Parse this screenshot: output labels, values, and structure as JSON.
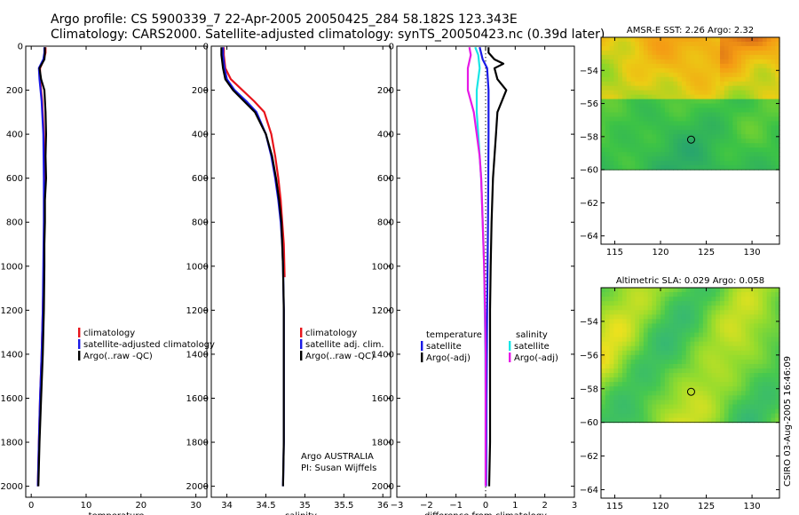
{
  "page": {
    "title_line1": "Argo profile: CS 5900339_7 22-Apr-2005 20050425_284 58.182S 123.343E",
    "title_line2": "Climatology: CARS2000. Satellite-adjusted climatology: synTS_20050423.nc (0.39d later)",
    "side_stamp": "CSIRO 03-Aug-2005 16:46:09",
    "colors": {
      "red": "#e8141b",
      "blue": "#1a1ae6",
      "black": "#000000",
      "cyan": "#19e6e6",
      "magenta": "#e619e6"
    }
  },
  "chart_data": [
    {
      "id": "temperature",
      "type": "line",
      "title": "",
      "xlabel": "temperature",
      "ylabel": "",
      "xlim": [
        -1,
        32
      ],
      "ylim": [
        2050,
        0
      ],
      "xticks": [
        0,
        10,
        20,
        30
      ],
      "yticks": [
        0,
        200,
        400,
        600,
        800,
        1000,
        1200,
        1400,
        1600,
        1800,
        2000
      ],
      "legend": [
        "climatology",
        "satellite-adjusted climatology",
        "Argo(..raw -QC)"
      ],
      "legend_loc": "center-right",
      "series": [
        {
          "name": "climatology",
          "color": "red",
          "points": [
            [
              2.6,
              5
            ],
            [
              2.6,
              30
            ],
            [
              2.3,
              60
            ],
            [
              1.6,
              100
            ],
            [
              1.6,
              150
            ],
            [
              2.0,
              250
            ],
            [
              2.3,
              400
            ],
            [
              2.4,
              600
            ],
            [
              2.4,
              800
            ],
            [
              2.3,
              1000
            ],
            [
              2.1,
              1200
            ],
            [
              1.9,
              1400
            ],
            [
              1.6,
              1600
            ],
            [
              1.4,
              1800
            ],
            [
              1.2,
              2000
            ]
          ]
        },
        {
          "name": "satellite-adjusted climatology",
          "color": "blue",
          "points": [
            [
              2.4,
              5
            ],
            [
              2.4,
              30
            ],
            [
              2.2,
              60
            ],
            [
              1.4,
              100
            ],
            [
              1.5,
              150
            ],
            [
              1.9,
              250
            ],
            [
              2.2,
              400
            ],
            [
              2.3,
              600
            ],
            [
              2.3,
              800
            ],
            [
              2.2,
              1000
            ],
            [
              2.1,
              1200
            ],
            [
              1.9,
              1400
            ],
            [
              1.6,
              1600
            ],
            [
              1.4,
              1800
            ],
            [
              1.2,
              2000
            ]
          ]
        },
        {
          "name": "Argo(..raw -QC)",
          "color": "black",
          "points": [
            [
              2.5,
              5
            ],
            [
              2.5,
              30
            ],
            [
              2.4,
              60
            ],
            [
              1.5,
              100
            ],
            [
              1.8,
              150
            ],
            [
              2.4,
              200
            ],
            [
              2.6,
              300
            ],
            [
              2.7,
              400
            ],
            [
              2.6,
              500
            ],
            [
              2.7,
              600
            ],
            [
              2.5,
              700
            ],
            [
              2.5,
              800
            ],
            [
              2.4,
              900
            ],
            [
              2.4,
              1000
            ],
            [
              2.3,
              1200
            ],
            [
              2.1,
              1400
            ],
            [
              1.8,
              1600
            ],
            [
              1.5,
              1800
            ],
            [
              1.3,
              2000
            ]
          ]
        }
      ]
    },
    {
      "id": "salinity",
      "type": "line",
      "title": "",
      "xlabel": "salinity",
      "ylabel": "",
      "xlim": [
        33.8,
        36.1
      ],
      "ylim": [
        2050,
        0
      ],
      "xticks": [
        34,
        34.5,
        35,
        35.5,
        36
      ],
      "yticks": [
        0,
        200,
        400,
        600,
        800,
        1000,
        1200,
        1400,
        1600,
        1800,
        2000
      ],
      "legend": [
        "climatology",
        "satellite adj. clim.",
        "Argo(..raw -QC)"
      ],
      "legend_loc": "center-right",
      "annotation": [
        "Argo AUSTRALIA",
        "PI: Susan Wijffels"
      ],
      "series": [
        {
          "name": "climatology",
          "color": "red",
          "points": [
            [
              33.96,
              5
            ],
            [
              33.96,
              40
            ],
            [
              33.98,
              100
            ],
            [
              34.05,
              150
            ],
            [
              34.2,
              200
            ],
            [
              34.35,
              250
            ],
            [
              34.48,
              300
            ],
            [
              34.57,
              400
            ],
            [
              34.62,
              500
            ],
            [
              34.66,
              600
            ],
            [
              34.69,
              700
            ],
            [
              34.71,
              800
            ],
            [
              34.73,
              900
            ],
            [
              34.74,
              1050
            ]
          ]
        },
        {
          "name": "satellite adj. clim.",
          "color": "blue",
          "points": [
            [
              33.95,
              5
            ],
            [
              33.95,
              40
            ],
            [
              33.97,
              100
            ],
            [
              34.0,
              150
            ],
            [
              34.1,
              200
            ],
            [
              34.25,
              250
            ],
            [
              34.38,
              300
            ],
            [
              34.5,
              400
            ],
            [
              34.57,
              500
            ],
            [
              34.62,
              600
            ],
            [
              34.66,
              700
            ],
            [
              34.69,
              800
            ],
            [
              34.71,
              900
            ],
            [
              34.72,
              1000
            ],
            [
              34.73,
              1200
            ],
            [
              34.73,
              1500
            ],
            [
              34.73,
              1800
            ],
            [
              34.72,
              2000
            ]
          ]
        },
        {
          "name": "Argo(..raw -QC)",
          "color": "black",
          "points": [
            [
              33.93,
              5
            ],
            [
              33.93,
              40
            ],
            [
              33.95,
              100
            ],
            [
              33.98,
              150
            ],
            [
              34.08,
              200
            ],
            [
              34.22,
              250
            ],
            [
              34.36,
              300
            ],
            [
              34.5,
              400
            ],
            [
              34.58,
              500
            ],
            [
              34.63,
              600
            ],
            [
              34.67,
              700
            ],
            [
              34.7,
              800
            ],
            [
              34.71,
              900
            ],
            [
              34.72,
              1000
            ],
            [
              34.73,
              1200
            ],
            [
              34.73,
              1500
            ],
            [
              34.73,
              1800
            ],
            [
              34.72,
              2000
            ]
          ]
        }
      ]
    },
    {
      "id": "difference",
      "type": "line",
      "title": "",
      "xlabel": "difference from climatology",
      "ylabel": "",
      "xlim": [
        -3,
        3
      ],
      "ylim": [
        2050,
        0
      ],
      "xticks": [
        -3,
        -2,
        -1,
        0,
        1,
        2,
        3
      ],
      "yticks": [
        0,
        200,
        400,
        600,
        800,
        1000,
        1200,
        1400,
        1600,
        1800,
        2000
      ],
      "legend_left": {
        "header": "temperature",
        "entries": [
          "satellite",
          "Argo(-adj)"
        ]
      },
      "legend_right": {
        "header": "salinity",
        "entries": [
          "satellite",
          "Argo(-adj)"
        ]
      },
      "legend_loc": "center",
      "series": [
        {
          "name": "temperature satellite",
          "color": "blue",
          "points": [
            [
              -0.2,
              5
            ],
            [
              -0.1,
              60
            ],
            [
              0.05,
              100
            ],
            [
              0.1,
              200
            ],
            [
              0.1,
              400
            ],
            [
              0.08,
              800
            ],
            [
              0.05,
              1200
            ],
            [
              0.03,
              1600
            ],
            [
              0.02,
              2000
            ]
          ]
        },
        {
          "name": "temperature Argo(-adj)",
          "color": "black",
          "points": [
            [
              0.1,
              5
            ],
            [
              0.1,
              30
            ],
            [
              0.3,
              60
            ],
            [
              0.6,
              80
            ],
            [
              0.3,
              100
            ],
            [
              0.4,
              150
            ],
            [
              0.7,
              200
            ],
            [
              0.4,
              300
            ],
            [
              0.35,
              400
            ],
            [
              0.25,
              600
            ],
            [
              0.2,
              800
            ],
            [
              0.17,
              1000
            ],
            [
              0.15,
              1200
            ],
            [
              0.15,
              1400
            ],
            [
              0.15,
              1600
            ],
            [
              0.15,
              1800
            ],
            [
              0.12,
              2000
            ]
          ]
        },
        {
          "name": "salinity satellite",
          "color": "cyan",
          "points": [
            [
              -0.35,
              5
            ],
            [
              -0.25,
              40
            ],
            [
              -0.2,
              100
            ],
            [
              -0.3,
              200
            ],
            [
              -0.3,
              300
            ],
            [
              -0.25,
              400
            ],
            [
              -0.2,
              500
            ],
            [
              -0.15,
              600
            ],
            [
              -0.1,
              800
            ],
            [
              -0.05,
              1000
            ],
            [
              -0.03,
              1200
            ],
            [
              -0.01,
              1400
            ],
            [
              0.0,
              1600
            ],
            [
              0.0,
              1800
            ],
            [
              0.0,
              2000
            ]
          ]
        },
        {
          "name": "salinity Argo(-adj)",
          "color": "magenta",
          "points": [
            [
              -0.55,
              5
            ],
            [
              -0.5,
              40
            ],
            [
              -0.6,
              100
            ],
            [
              -0.6,
              200
            ],
            [
              -0.4,
              300
            ],
            [
              -0.3,
              400
            ],
            [
              -0.2,
              500
            ],
            [
              -0.15,
              600
            ],
            [
              -0.1,
              800
            ],
            [
              -0.05,
              1000
            ],
            [
              -0.02,
              1200
            ],
            [
              0.0,
              1400
            ],
            [
              0.0,
              1600
            ],
            [
              0.0,
              1800
            ],
            [
              0.0,
              2000
            ]
          ]
        }
      ]
    },
    {
      "id": "sst_map",
      "type": "heatmap",
      "title": "AMSR-E SST: 2.26 Argo: 2.32",
      "xlim": [
        113.5,
        133
      ],
      "ylim": [
        -64.5,
        -52
      ],
      "xticks": [
        115,
        120,
        125,
        130
      ],
      "yticks": [
        -54,
        -56,
        -58,
        -60,
        -62,
        -64
      ],
      "marker": [
        123.343,
        -58.182
      ],
      "data_ylim": [
        -60,
        -52
      ]
    },
    {
      "id": "sla_map",
      "type": "heatmap",
      "title": "Altimetric SLA: 0.029 Argo: 0.058",
      "xlim": [
        113.5,
        133
      ],
      "ylim": [
        -64.5,
        -52
      ],
      "xticks": [
        115,
        120,
        125,
        130
      ],
      "yticks": [
        -54,
        -56,
        -58,
        -60,
        -62,
        -64
      ],
      "marker": [
        123.343,
        -58.182
      ],
      "data_ylim": [
        -60,
        -52
      ]
    }
  ]
}
